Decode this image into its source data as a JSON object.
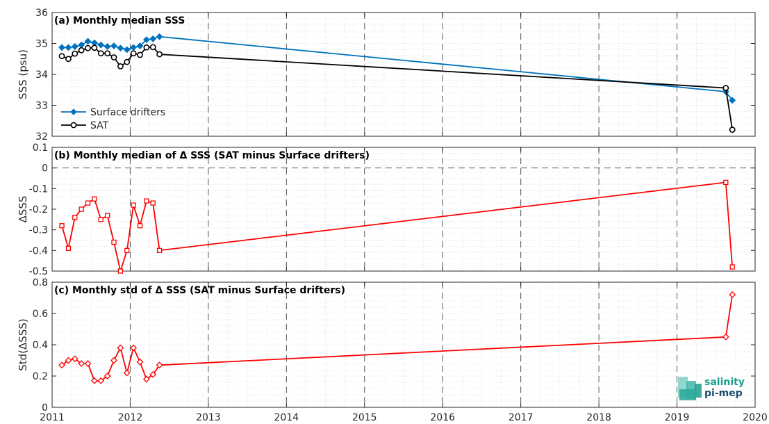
{
  "colors": {
    "drifters": "#0072BD",
    "sat": "#000000",
    "delta": "#FF0000",
    "logo_teal": "#1a9e8f",
    "logo_dark": "#1a4f6e"
  },
  "logo": {
    "line1": "salinity",
    "line2": "pi-mep"
  },
  "chart_data": [
    {
      "type": "line",
      "title": "(a) Monthly median SSS",
      "ylabel": "SSS (psu)",
      "xlim": [
        2011,
        2020
      ],
      "ylim": [
        32,
        36
      ],
      "yticks": [
        32,
        33,
        34,
        35,
        36
      ],
      "xticks": [
        2011,
        2012,
        2013,
        2014,
        2015,
        2016,
        2017,
        2018,
        2019,
        2020
      ],
      "grid": true,
      "legend_position": "bottom-left",
      "x": [
        "2011-02",
        "2011-03",
        "2011-04",
        "2011-05",
        "2011-06",
        "2011-07",
        "2011-08",
        "2011-09",
        "2011-10",
        "2011-11",
        "2011-12",
        "2012-01",
        "2012-02",
        "2012-03",
        "2012-04",
        "2012-05",
        "2019-08",
        "2019-09"
      ],
      "series": [
        {
          "name": "Surface drifters",
          "marker": "diamond",
          "values": [
            34.87,
            34.87,
            34.9,
            34.95,
            35.07,
            35.02,
            34.95,
            34.9,
            34.92,
            34.85,
            34.8,
            34.87,
            34.92,
            35.12,
            35.15,
            35.22,
            33.44,
            33.16
          ]
        },
        {
          "name": "SAT",
          "marker": "circle",
          "values": [
            34.59,
            34.5,
            34.67,
            34.78,
            34.85,
            34.86,
            34.68,
            34.68,
            34.55,
            34.26,
            34.4,
            34.68,
            34.63,
            34.87,
            34.88,
            34.65,
            33.56,
            32.21
          ]
        }
      ]
    },
    {
      "type": "line",
      "title": "(b) Monthly median of Δ SSS (SAT minus Surface drifters)",
      "ylabel": "ΔSSS",
      "xlim": [
        2011,
        2020
      ],
      "ylim": [
        -0.5,
        0.1
      ],
      "yticks": [
        -0.5,
        -0.4,
        -0.3,
        -0.2,
        -0.1,
        0,
        0.1
      ],
      "reference_line": 0,
      "x": [
        "2011-02",
        "2011-03",
        "2011-04",
        "2011-05",
        "2011-06",
        "2011-07",
        "2011-08",
        "2011-09",
        "2011-10",
        "2011-11",
        "2011-12",
        "2012-01",
        "2012-02",
        "2012-03",
        "2012-04",
        "2012-05",
        "2019-08",
        "2019-09"
      ],
      "series": [
        {
          "marker": "square",
          "values": [
            -0.28,
            -0.39,
            -0.24,
            -0.2,
            -0.17,
            -0.15,
            -0.25,
            -0.23,
            -0.36,
            -0.5,
            -0.4,
            -0.18,
            -0.28,
            -0.16,
            -0.17,
            -0.4,
            -0.07,
            -0.48
          ]
        }
      ]
    },
    {
      "type": "line",
      "title": "(c) Monthly std of Δ SSS (SAT minus Surface drifters)",
      "ylabel": "Std(ΔSSS)",
      "xlim": [
        2011,
        2020
      ],
      "ylim": [
        0,
        0.8
      ],
      "yticks": [
        0,
        0.2,
        0.4,
        0.6,
        0.8
      ],
      "x": [
        "2011-02",
        "2011-03",
        "2011-04",
        "2011-05",
        "2011-06",
        "2011-07",
        "2011-08",
        "2011-09",
        "2011-10",
        "2011-11",
        "2011-12",
        "2012-01",
        "2012-02",
        "2012-03",
        "2012-04",
        "2012-05",
        "2019-08",
        "2019-09"
      ],
      "series": [
        {
          "marker": "diamond",
          "values": [
            0.27,
            0.3,
            0.31,
            0.28,
            0.28,
            0.17,
            0.17,
            0.2,
            0.3,
            0.38,
            0.22,
            0.38,
            0.29,
            0.18,
            0.21,
            0.27,
            0.45,
            0.72
          ]
        }
      ]
    }
  ]
}
